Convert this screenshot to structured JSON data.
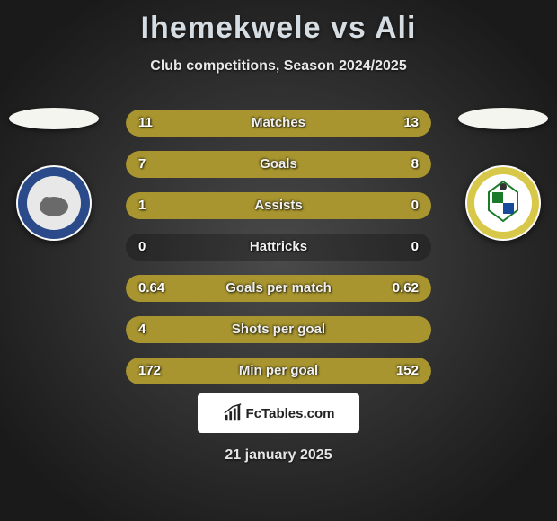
{
  "title": "Ihemekwele vs Ali",
  "subtitle": "Club competitions, Season 2024/2025",
  "date": "21 january 2025",
  "footer_brand": "FcTables.com",
  "colors": {
    "left_bar": "#a8952f",
    "right_bar": "#a8952f",
    "row_bg": "rgba(0,0,0,0.25)"
  },
  "crests": {
    "left": {
      "ring": "#2a4a8a",
      "inner": "#e8e8e8",
      "accent": "#6a6a6a"
    },
    "right": {
      "ring": "#d8c84a",
      "inner": "#ffffff",
      "accent1": "#1a7a2a",
      "accent2": "#1a4a9a"
    }
  },
  "rows": [
    {
      "label": "Matches",
      "left": "11",
      "right": "13",
      "lfrac": 0.458,
      "rfrac": 0.542
    },
    {
      "label": "Goals",
      "left": "7",
      "right": "8",
      "lfrac": 0.467,
      "rfrac": 0.533
    },
    {
      "label": "Assists",
      "left": "1",
      "right": "0",
      "lfrac": 1.0,
      "rfrac": 0.0
    },
    {
      "label": "Hattricks",
      "left": "0",
      "right": "0",
      "lfrac": 0.0,
      "rfrac": 0.0
    },
    {
      "label": "Goals per match",
      "left": "0.64",
      "right": "0.62",
      "lfrac": 0.508,
      "rfrac": 0.492
    },
    {
      "label": "Shots per goal",
      "left": "4",
      "right": "",
      "lfrac": 1.0,
      "rfrac": 0.0
    },
    {
      "label": "Min per goal",
      "left": "172",
      "right": "152",
      "lfrac": 0.531,
      "rfrac": 0.469
    }
  ]
}
